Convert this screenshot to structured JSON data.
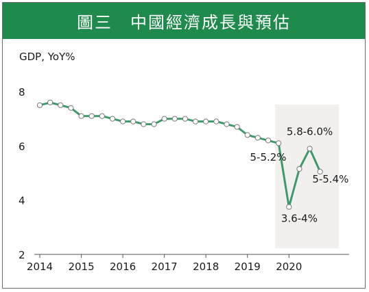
{
  "chart_data": {
    "type": "line",
    "title": "圖三　中國經濟成長與預估",
    "ylabel": "GDP, YoY%",
    "xlabel": "",
    "ylim": [
      2,
      8
    ],
    "yticks": [
      2,
      4,
      6,
      8
    ],
    "xlim": [
      2014,
      2021.25
    ],
    "xticks": [
      "2014",
      "2015",
      "2016",
      "2017",
      "2018",
      "2019",
      "2020"
    ],
    "grid": false,
    "line_color": "#3c9a6a",
    "marker_fill": "#ffffff",
    "forecast_shading_color": "#f1f0ee",
    "forecast_range": [
      2019.67,
      2021.2
    ],
    "x": [
      2014.0,
      2014.25,
      2014.5,
      2014.75,
      2015.0,
      2015.25,
      2015.5,
      2015.75,
      2016.0,
      2016.25,
      2016.5,
      2016.75,
      2017.0,
      2017.25,
      2017.5,
      2017.75,
      2018.0,
      2018.25,
      2018.5,
      2018.75,
      2019.0,
      2019.25,
      2019.5,
      2019.75,
      2020.0,
      2020.25,
      2020.5,
      2020.75
    ],
    "y": [
      7.5,
      7.6,
      7.5,
      7.4,
      7.1,
      7.1,
      7.1,
      7.0,
      6.9,
      6.9,
      6.8,
      6.8,
      7.0,
      7.0,
      7.0,
      6.9,
      6.9,
      6.9,
      6.8,
      6.7,
      6.4,
      6.3,
      6.2,
      6.1,
      3.75,
      5.15,
      5.9,
      5.05
    ],
    "annotations": [
      {
        "text": "5-5.2%",
        "x": 2019.5,
        "y": 5.45
      },
      {
        "text": "3.6-4%",
        "x": 2020.25,
        "y": 3.2
      },
      {
        "text": "5.8-6.0%",
        "x": 2020.5,
        "y": 6.4
      },
      {
        "text": "5-5.4%",
        "x": 2021.0,
        "y": 4.65
      }
    ]
  }
}
